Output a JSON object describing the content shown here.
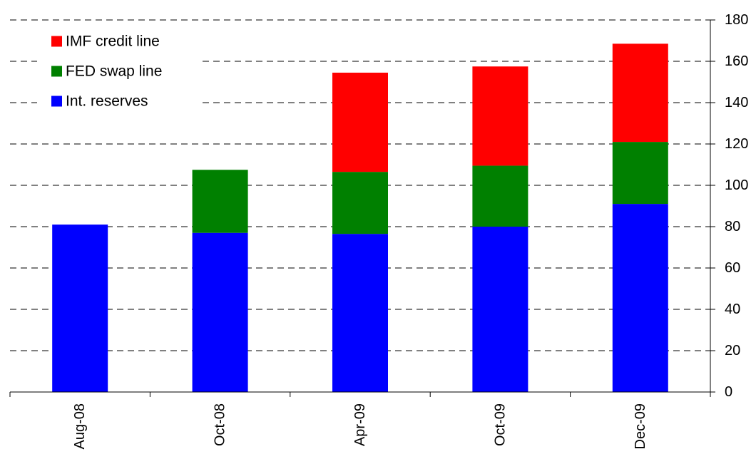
{
  "chart_data": {
    "type": "bar",
    "stacked": true,
    "categories": [
      "Aug-08",
      "Oct-08",
      "Apr-09",
      "Oct-09",
      "Dec-09"
    ],
    "series": [
      {
        "name": "Int. reserves",
        "color": "#0000ff",
        "values": [
          81,
          77,
          76.5,
          80,
          91
        ]
      },
      {
        "name": "FED swap line",
        "color": "#008000",
        "values": [
          0,
          30.5,
          30,
          29.5,
          30
        ]
      },
      {
        "name": "IMF credit line",
        "color": "#ff0000",
        "values": [
          0,
          0,
          48,
          48,
          47.5
        ]
      }
    ],
    "title": "",
    "xlabel": "",
    "ylabel": "",
    "ylim": [
      0,
      180
    ],
    "yticks": [
      0,
      20,
      40,
      60,
      80,
      100,
      120,
      140,
      160,
      180
    ],
    "y_axis_side": "right",
    "grid": "horizontal-dashed",
    "legend": {
      "placement": "top-left",
      "order": [
        "IMF credit line",
        "FED swap line",
        "Int. reserves"
      ]
    }
  }
}
